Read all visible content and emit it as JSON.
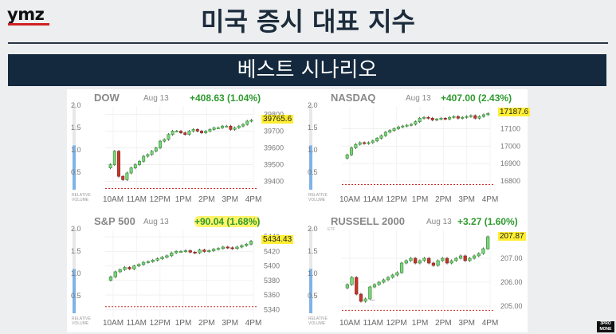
{
  "header": {
    "logo": "ymz",
    "title": "미국 증시 대표 지수",
    "banner": "베스트 시나리오"
  },
  "corner_badge": [
    "3PRO",
    "MONE"
  ],
  "charts": [
    {
      "name": "DOW",
      "date": "Aug 13",
      "change": "+408.63 (1.04%)",
      "last": "39765.6",
      "y_ticks": [
        "39800",
        "39700",
        "39600",
        "39500",
        "39400"
      ],
      "x_ticks": [
        "10AM",
        "11AM",
        "12PM",
        "1PM",
        "2PM",
        "3PM",
        "4PM"
      ],
      "vol_ticks": [
        "2.0",
        "1.5",
        "1.0",
        "0.5"
      ],
      "vol_caption": [
        "RELATIVE",
        "VOLUME"
      ],
      "etf_tag": "",
      "highlight": false
    },
    {
      "name": "NASDAQ",
      "date": "Aug 13",
      "change": "+407.00 (2.43%)",
      "last": "17187.6",
      "y_ticks": [
        "17100",
        "17000",
        "16900",
        "16800"
      ],
      "x_ticks": [
        "10AM",
        "11AM",
        "12PM",
        "1PM",
        "2PM",
        "3PM",
        "4PM"
      ],
      "vol_ticks": [
        "2.0",
        "1.5",
        "1.0",
        "0.5"
      ],
      "vol_caption": [
        "RELATIVE",
        "VOLUME"
      ],
      "etf_tag": "",
      "highlight": false
    },
    {
      "name": "S&P 500",
      "date": "Aug 13",
      "change": "+90.04 (1.68%)",
      "last": "5434.43",
      "y_ticks": [
        "5440",
        "5420",
        "5400",
        "5380",
        "5360",
        "5340"
      ],
      "x_ticks": [
        "10AM",
        "11AM",
        "12PM",
        "1PM",
        "2PM",
        "3PM",
        "4PM"
      ],
      "vol_ticks": [
        "2.0",
        "1.5",
        "1.0",
        "0.5"
      ],
      "vol_caption": [
        "RELATIVE",
        "VOLUME"
      ],
      "etf_tag": "",
      "highlight": true
    },
    {
      "name": "RUSSELL 2000",
      "date": "Aug 13",
      "change": "+3.27 (1.60%)",
      "last": "207.87",
      "y_ticks": [
        "207.00",
        "206.00",
        "205.00"
      ],
      "x_ticks": [
        "10AM",
        "11AM",
        "12PM",
        "1PM",
        "2PM",
        "3PM",
        "4PM"
      ],
      "vol_ticks": [
        "2.0",
        "1.5",
        "1.0",
        "0.5"
      ],
      "vol_caption": [
        "RELATIVE",
        "VOLUME"
      ],
      "etf_tag": "ETF",
      "highlight": false
    }
  ],
  "chart_data": [
    {
      "type": "candlestick",
      "title": "DOW",
      "ylim": [
        39350,
        39850
      ],
      "x": [
        "09:30",
        "16:00"
      ],
      "prev_close_dashed": 39357,
      "last": 39765.6,
      "path": [
        39500,
        39580,
        39430,
        39410,
        39450,
        39480,
        39500,
        39520,
        39550,
        39560,
        39580,
        39600,
        39640,
        39650,
        39680,
        39700,
        39700,
        39690,
        39680,
        39700,
        39710,
        39700,
        39690,
        39700,
        39710,
        39720,
        39720,
        39730,
        39730,
        39710,
        39720,
        39730,
        39740,
        39760,
        39765
      ]
    },
    {
      "type": "candlestick",
      "title": "NASDAQ",
      "ylim": [
        16750,
        17230
      ],
      "x": [
        "09:30",
        "16:00"
      ],
      "prev_close_dashed": 16780,
      "last": 17187.6,
      "path": [
        16950,
        16990,
        17010,
        17020,
        17015,
        17020,
        17030,
        17045,
        17060,
        17080,
        17090,
        17100,
        17110,
        17115,
        17120,
        17125,
        17140,
        17160,
        17165,
        17160,
        17150,
        17155,
        17160,
        17155,
        17165,
        17170,
        17160,
        17165,
        17170,
        17175,
        17160,
        17170,
        17180,
        17187
      ]
    },
    {
      "type": "candlestick",
      "title": "S&P 500",
      "ylim": [
        5335,
        5450
      ],
      "x": [
        "09:30",
        "16:00"
      ],
      "prev_close_dashed": 5344,
      "last": 5434.43,
      "path": [
        5385,
        5392,
        5395,
        5398,
        5396,
        5400,
        5402,
        5405,
        5406,
        5408,
        5410,
        5412,
        5414,
        5418,
        5420,
        5420,
        5421,
        5419,
        5418,
        5422,
        5420,
        5421,
        5423,
        5424,
        5426,
        5425,
        5424,
        5426,
        5428,
        5430,
        5434
      ]
    },
    {
      "type": "candlestick",
      "title": "RUSSELL 2000",
      "ylim": [
        204.7,
        208.2
      ],
      "x": [
        "09:30",
        "16:00"
      ],
      "prev_close_dashed": 204.82,
      "last": 207.87,
      "path": [
        205.9,
        206.2,
        205.5,
        205.2,
        205.3,
        205.8,
        205.9,
        206.0,
        206.1,
        206.2,
        206.3,
        206.4,
        206.8,
        206.9,
        207.0,
        206.8,
        206.9,
        207.0,
        206.8,
        206.7,
        206.9,
        207.0,
        206.8,
        206.9,
        207.0,
        207.1,
        206.9,
        207.0,
        207.1,
        207.2,
        207.4,
        207.9
      ]
    }
  ]
}
